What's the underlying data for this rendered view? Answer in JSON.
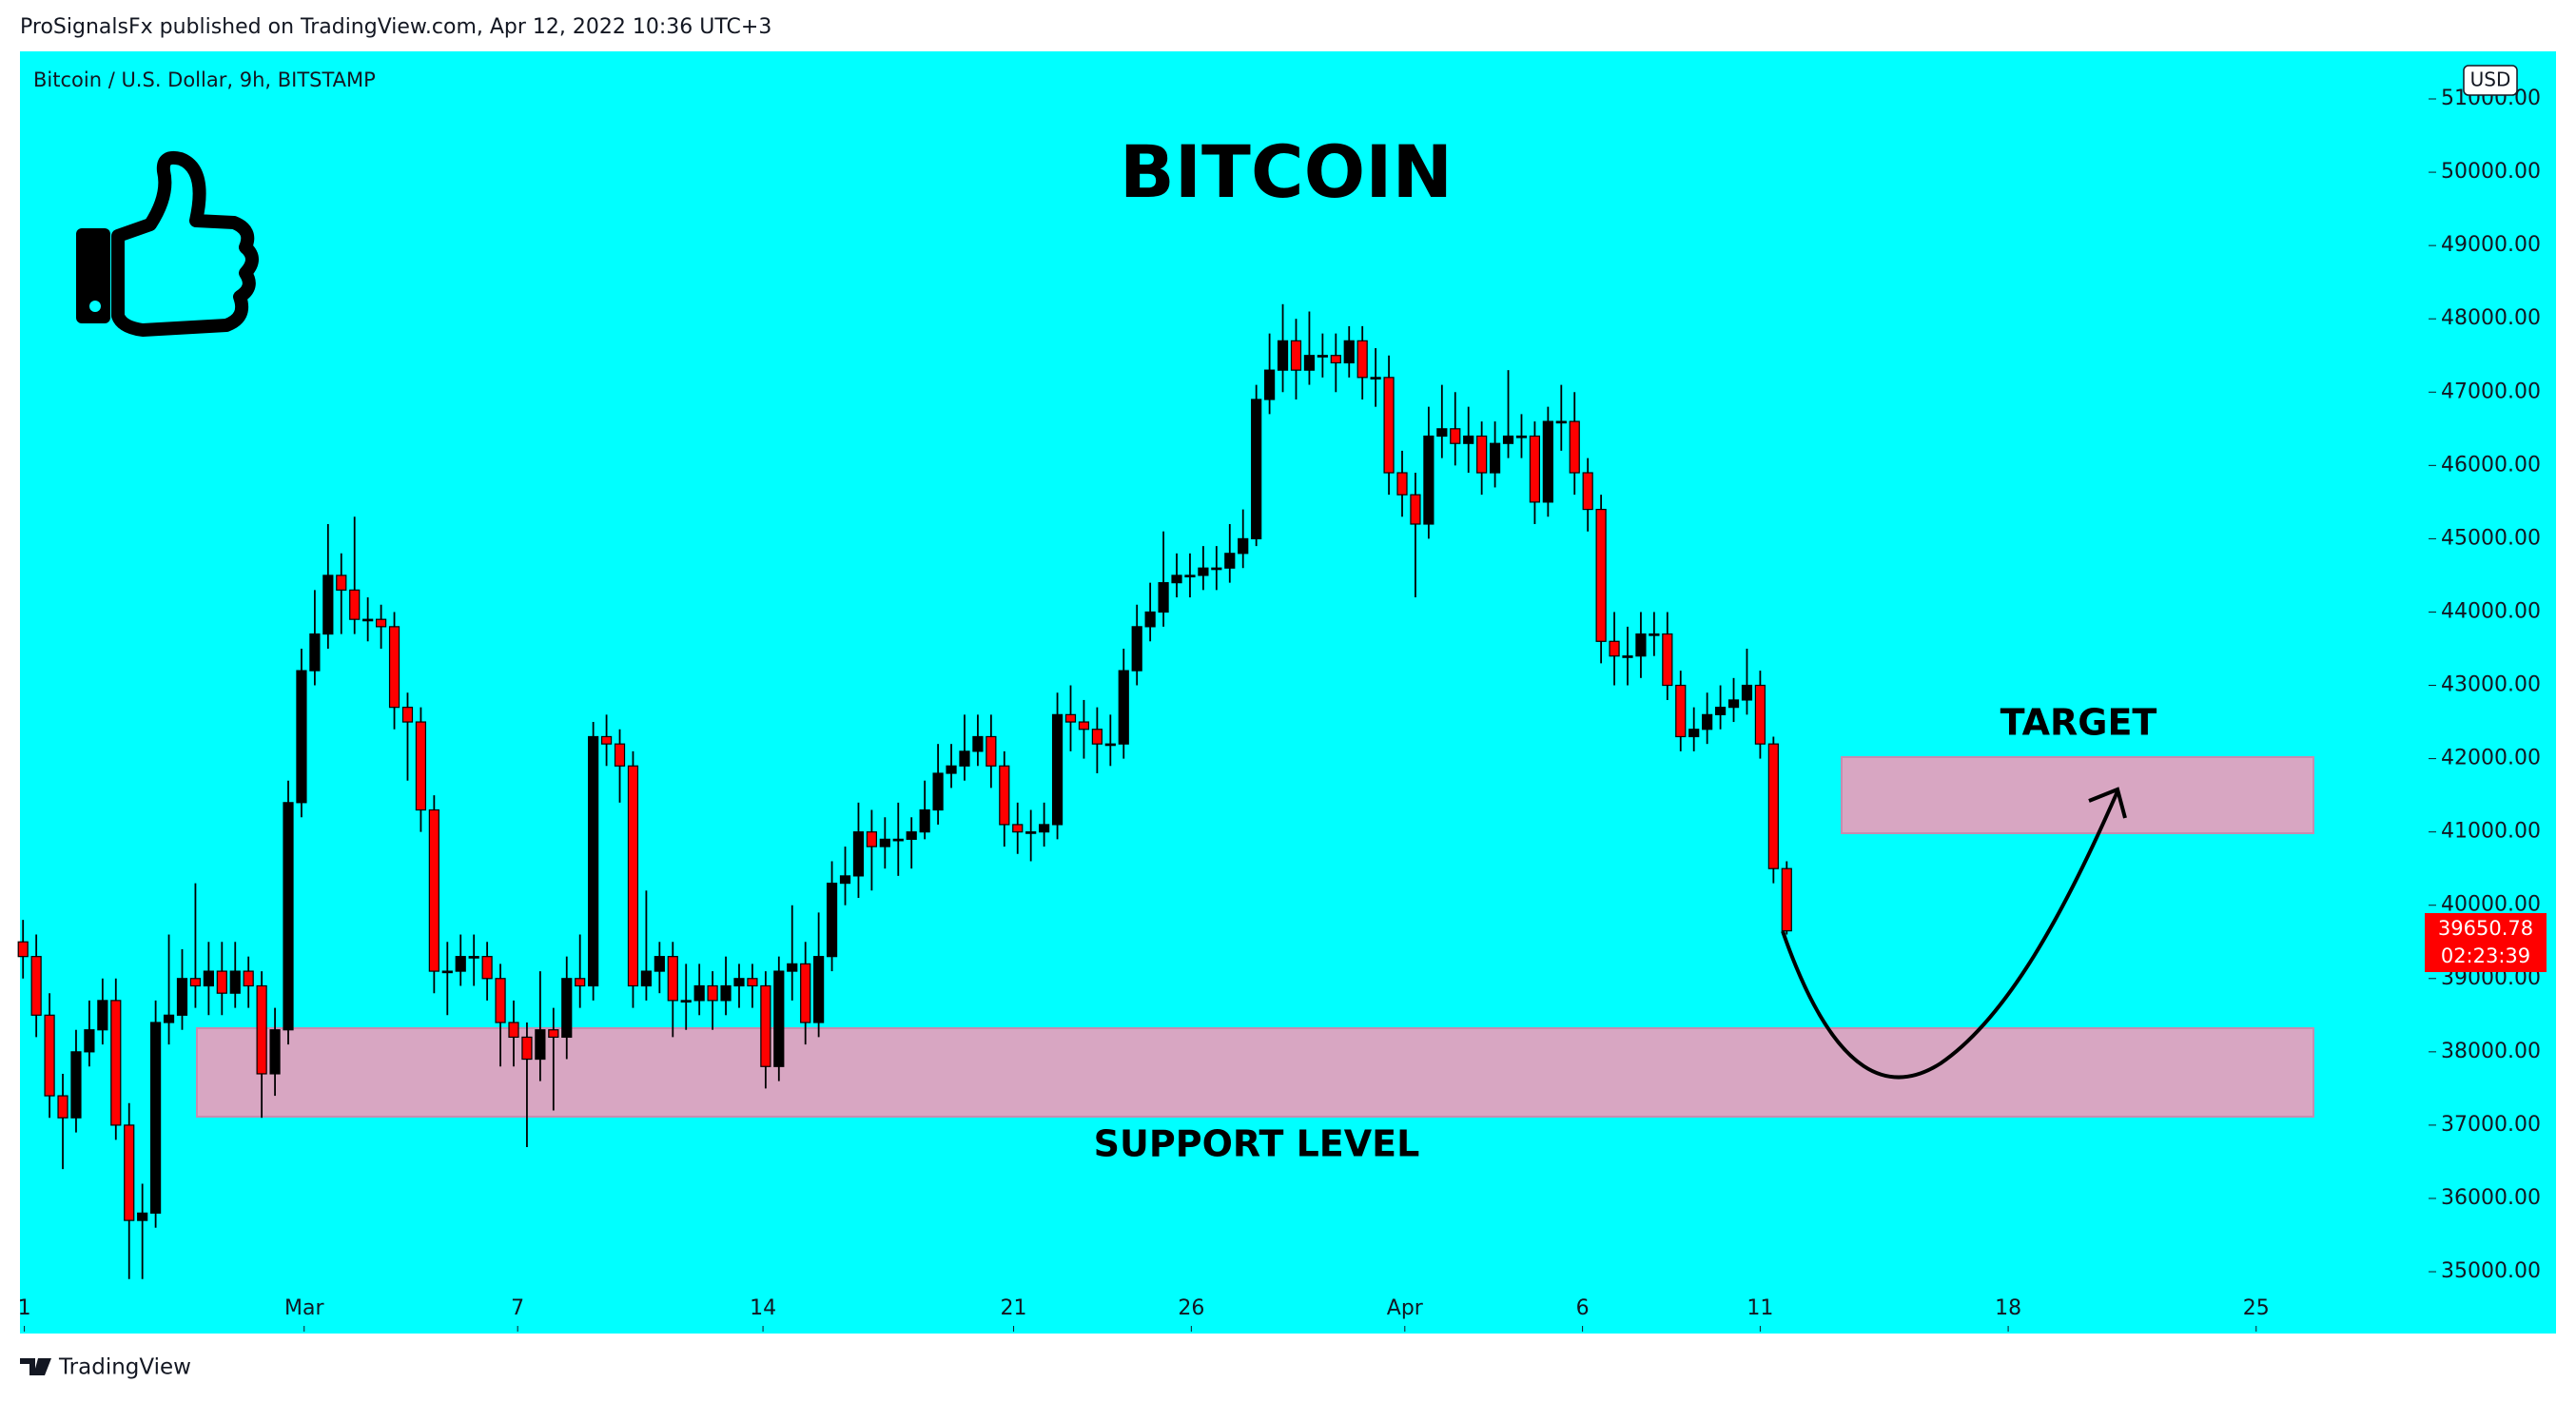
{
  "header": "ProSignalsFx published on TradingView.com, Apr 12, 2022 10:36 UTC+3",
  "footer": "TradingView",
  "chart_data": {
    "type": "candlestick",
    "symbol": "Bitcoin / U.S. Dollar, 9h, BITSTAMP",
    "currency": "USD",
    "title": "BITCOIN",
    "annotations": [
      "TARGET",
      "SUPPORT LEVEL"
    ],
    "countdown": "02:23:39",
    "up_color": "#000000",
    "down_color": "#ff0000",
    "open": [
      39500,
      39300,
      38500,
      37400,
      37100,
      38000,
      38300,
      38700,
      37000,
      35700,
      35800,
      38400,
      38500,
      39000,
      38900,
      39100,
      38800,
      39100,
      38900,
      37700,
      38300,
      41400,
      43200,
      43700,
      44500,
      44300,
      43900,
      43900,
      43800,
      42700,
      42500,
      41300,
      39100,
      39100,
      39300,
      39300,
      39000,
      38400,
      38200,
      37900,
      38300,
      38200,
      39000,
      38900,
      42300,
      42200,
      41900,
      38900,
      39100,
      39300,
      38700,
      38700,
      38900,
      38700,
      38900,
      39000,
      38900,
      37800,
      39100,
      39200,
      38400,
      39300,
      40300,
      40400,
      41000,
      40800,
      40900,
      40900,
      41000,
      41300,
      41800,
      41900,
      42100,
      42300,
      41900,
      41100,
      41000,
      41000,
      41100,
      42600,
      42500,
      42400,
      42200,
      42200,
      43200,
      43800,
      44000,
      44400,
      44500,
      44500,
      44600,
      44600,
      44800,
      45000,
      46900,
      47300,
      47700,
      47300,
      47500,
      47500,
      47400,
      47700,
      47200,
      47200,
      45900,
      45600,
      45200,
      46400,
      46500,
      46300,
      46400,
      45900,
      46300,
      46400,
      46400,
      45500,
      46600,
      46600,
      45900,
      45400,
      43600,
      43400,
      43400,
      43700,
      43700,
      43000,
      42300,
      42400,
      42600,
      42700,
      42800,
      43000,
      42200,
      40500
    ],
    "high": [
      39800,
      39600,
      38800,
      37700,
      38300,
      38700,
      39000,
      39000,
      37300,
      36200,
      38700,
      39600,
      39400,
      40300,
      39500,
      39500,
      39500,
      39300,
      39100,
      38600,
      41700,
      43500,
      44300,
      45200,
      44800,
      45300,
      44200,
      44100,
      44000,
      42900,
      42700,
      41500,
      39500,
      39600,
      39600,
      39500,
      39200,
      38700,
      38400,
      39100,
      38600,
      39300,
      39600,
      42500,
      42600,
      42400,
      42100,
      40200,
      39500,
      39500,
      39200,
      39200,
      39100,
      39300,
      39200,
      39200,
      39100,
      39300,
      40000,
      39500,
      39900,
      40600,
      40800,
      41400,
      41300,
      41200,
      41400,
      41200,
      41700,
      42200,
      42200,
      42600,
      42600,
      42600,
      42100,
      41400,
      41300,
      41400,
      42900,
      43000,
      42800,
      42700,
      42600,
      43500,
      44100,
      44400,
      45100,
      44800,
      44800,
      44900,
      44900,
      45200,
      45400,
      47100,
      47800,
      48200,
      48000,
      48100,
      47800,
      47800,
      47900,
      47900,
      47600,
      47500,
      46200,
      45900,
      46800,
      47100,
      47000,
      46800,
      46600,
      46600,
      47300,
      46700,
      46600,
      46800,
      47100,
      47000,
      46100,
      45600,
      44000,
      43800,
      44000,
      44000,
      44000,
      43200,
      42700,
      42900,
      43000,
      43100,
      43500,
      43200,
      42300,
      40600
    ],
    "low": [
      39000,
      38200,
      37100,
      36400,
      36900,
      37800,
      38100,
      36800,
      34900,
      34900,
      35600,
      38100,
      38300,
      38600,
      38500,
      38500,
      38600,
      38600,
      37100,
      37400,
      38100,
      41200,
      43000,
      43500,
      43700,
      43700,
      43600,
      43500,
      42400,
      41700,
      41000,
      38800,
      38500,
      38900,
      38900,
      38700,
      37800,
      37800,
      36700,
      37600,
      37200,
      37900,
      38600,
      38700,
      41900,
      41400,
      38600,
      38700,
      38800,
      38200,
      38300,
      38500,
      38300,
      38500,
      38600,
      38600,
      37500,
      37600,
      38700,
      38100,
      38200,
      39100,
      40000,
      40100,
      40200,
      40500,
      40400,
      40500,
      40900,
      41100,
      41600,
      41700,
      41900,
      41600,
      40800,
      40700,
      40600,
      40800,
      40900,
      42100,
      42000,
      41800,
      41900,
      42000,
      43000,
      43600,
      43800,
      44200,
      44200,
      44300,
      44300,
      44400,
      44600,
      44900,
      46700,
      47000,
      46900,
      47100,
      47200,
      47000,
      47200,
      46900,
      46800,
      45600,
      45300,
      44200,
      45000,
      46100,
      46000,
      45900,
      45600,
      45700,
      46100,
      46100,
      45200,
      45300,
      46200,
      45600,
      45100,
      43300,
      43000,
      43000,
      43100,
      43400,
      42800,
      42100,
      42100,
      42200,
      42400,
      42500,
      42600,
      42000,
      40300,
      39600
    ],
    "close": [
      39300,
      38500,
      37400,
      37100,
      38000,
      38300,
      38700,
      37000,
      35700,
      35800,
      38400,
      38500,
      39000,
      38900,
      39100,
      38800,
      39100,
      38900,
      37700,
      38300,
      41400,
      43200,
      43700,
      44500,
      44300,
      43900,
      43900,
      43800,
      42700,
      42500,
      41300,
      39100,
      39100,
      39300,
      39300,
      39000,
      38400,
      38200,
      37900,
      38300,
      38200,
      39000,
      38900,
      42300,
      42200,
      41900,
      38900,
      39100,
      39300,
      38700,
      38700,
      38900,
      38700,
      38900,
      39000,
      38900,
      37800,
      39100,
      39200,
      38400,
      39300,
      40300,
      40400,
      41000,
      40800,
      40900,
      40900,
      41000,
      41300,
      41800,
      41900,
      42100,
      42300,
      41900,
      41100,
      41000,
      41000,
      41100,
      42600,
      42500,
      42400,
      42200,
      42200,
      43200,
      43800,
      44000,
      44400,
      44500,
      44500,
      44600,
      44600,
      44800,
      45000,
      46900,
      47300,
      47700,
      47300,
      47500,
      47500,
      47400,
      47700,
      47200,
      47200,
      45900,
      45600,
      45200,
      46400,
      46500,
      46300,
      46400,
      45900,
      46300,
      46400,
      46400,
      45500,
      46600,
      46600,
      45900,
      45400,
      43600,
      43400,
      43400,
      43700,
      43700,
      43000,
      42300,
      42400,
      42600,
      42700,
      42800,
      43000,
      42200,
      40500,
      39650.78
    ],
    "xlim": [
      -0.23,
      181.4
    ],
    "xticks": [
      {
        "value": 0.1,
        "label": "1"
      },
      {
        "value": 21.2,
        "label": "Mar"
      },
      {
        "value": 37.3,
        "label": "7"
      },
      {
        "value": 55.8,
        "label": "14"
      },
      {
        "value": 74.7,
        "label": "21"
      },
      {
        "value": 88.1,
        "label": "26"
      },
      {
        "value": 104.2,
        "label": "Apr"
      },
      {
        "value": 117.6,
        "label": "6"
      },
      {
        "value": 131.0,
        "label": "11"
      },
      {
        "value": 149.7,
        "label": "18"
      },
      {
        "value": 168.4,
        "label": "25"
      }
    ],
    "ylim": [
      34157,
      51649
    ],
    "yticks": [
      {
        "value": 35000,
        "label": "35000.00"
      },
      {
        "value": 36000,
        "label": "36000.00"
      },
      {
        "value": 37000,
        "label": "37000.00"
      },
      {
        "value": 38000,
        "label": "38000.00"
      },
      {
        "value": 39000,
        "label": "39000.00"
      },
      {
        "value": 40000,
        "label": "40000.00"
      },
      {
        "value": 41000,
        "label": "41000.00"
      },
      {
        "value": 42000,
        "label": "42000.00"
      },
      {
        "value": 43000,
        "label": "43000.00"
      },
      {
        "value": 44000,
        "label": "44000.00"
      },
      {
        "value": 45000,
        "label": "45000.00"
      },
      {
        "value": 46000,
        "label": "46000.00"
      },
      {
        "value": 47000,
        "label": "47000.00"
      },
      {
        "value": 48000,
        "label": "48000.00"
      },
      {
        "value": 49000,
        "label": "49000.00"
      },
      {
        "value": 50000,
        "label": "50000.00"
      },
      {
        "value": 51000,
        "label": "51000.00"
      }
    ],
    "grid": false
  }
}
